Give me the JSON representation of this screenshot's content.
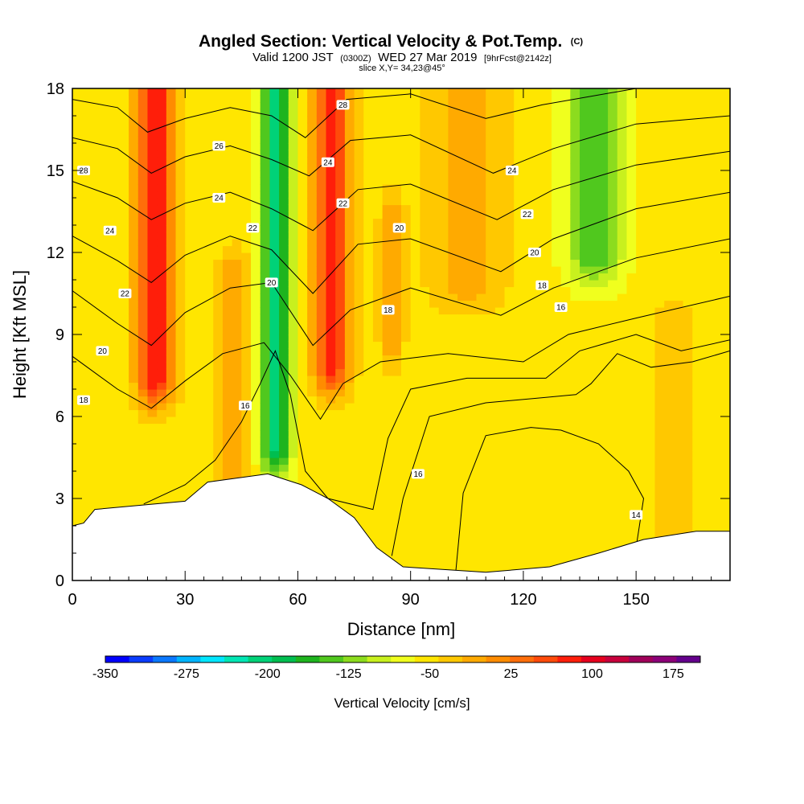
{
  "header": {
    "title_main": "Angled Section: Vertical Velocity & Pot.Temp.",
    "title_suffix": "(C)",
    "valid_prefix": "Valid 1200 JST",
    "valid_utc": "(0300Z)",
    "valid_date": "WED 27 Mar 2019",
    "forecast": "[9hrFcst@2142z]",
    "slice": "slice X,Y= 34,23@45°"
  },
  "chart_data": {
    "type": "heatmap",
    "xlabel": "Distance [nm]",
    "ylabel": "Height [Kft MSL]",
    "xlim": [
      0,
      175
    ],
    "ylim": [
      0,
      18
    ],
    "x_ticks": [
      0,
      30,
      60,
      90,
      120,
      150
    ],
    "y_ticks": [
      0,
      3,
      6,
      9,
      12,
      15,
      18
    ],
    "x_tick_labels": [
      "0",
      "30",
      "60",
      "90",
      "120",
      "150"
    ],
    "y_tick_labels": [
      "0",
      "3",
      "6",
      "9",
      "12",
      "15",
      "18"
    ],
    "colorbar": {
      "title": "Vertical Velocity [cm/s]",
      "min": -350,
      "max": 200,
      "step": 25,
      "tick_values": [
        -350,
        -275,
        -200,
        -125,
        -50,
        25,
        100,
        175
      ],
      "tick_labels": [
        "-350",
        "-275",
        "-200",
        "-125",
        "-50",
        "25",
        "100",
        "175"
      ],
      "colors": [
        "#0000ff",
        "#0a3cff",
        "#0a78ff",
        "#00b4ff",
        "#00e6ff",
        "#00e6b4",
        "#00d278",
        "#00be50",
        "#1eb41e",
        "#50c81e",
        "#8cdc1e",
        "#c8f01e",
        "#f0ff1e",
        "#ffe600",
        "#ffc800",
        "#ffaa00",
        "#ff8c00",
        "#ff6e0a",
        "#ff4b0a",
        "#ff1e0a",
        "#e6001e",
        "#c8003c",
        "#a0005a",
        "#8c0078",
        "#64008c"
      ]
    },
    "velocity_field": {
      "background": -15,
      "features": [
        {
          "x": 22,
          "y_range": [
            7.5,
            18
          ],
          "width": 5,
          "peak": 150
        },
        {
          "x": 43,
          "y_range": [
            3.5,
            11
          ],
          "width": 4,
          "peak": 50
        },
        {
          "x": 54,
          "y_range": [
            5,
            18
          ],
          "width": 4,
          "peak": -185
        },
        {
          "x": 69,
          "y_range": [
            8,
            18
          ],
          "width": 5,
          "peak": 140
        },
        {
          "x": 85,
          "y_range": [
            9,
            13
          ],
          "width": 3,
          "peak": 60
        },
        {
          "x": 105,
          "y_range": [
            11,
            18
          ],
          "width": 10,
          "peak": 40
        },
        {
          "x": 139,
          "y_range": [
            12,
            18
          ],
          "width": 7,
          "peak": -125
        },
        {
          "x": 160,
          "y_range": [
            2,
            9
          ],
          "width": 6,
          "peak": 25
        }
      ]
    },
    "terrain": [
      {
        "x": 0,
        "height": 2.0
      },
      {
        "x": 3,
        "height": 2.1
      },
      {
        "x": 6,
        "height": 2.6
      },
      {
        "x": 30,
        "height": 2.9
      },
      {
        "x": 36,
        "height": 3.6
      },
      {
        "x": 52,
        "height": 3.9
      },
      {
        "x": 61,
        "height": 3.5
      },
      {
        "x": 68,
        "height": 3.0
      },
      {
        "x": 75,
        "height": 2.3
      },
      {
        "x": 81,
        "height": 1.2
      },
      {
        "x": 88,
        "height": 0.5
      },
      {
        "x": 110,
        "height": 0.3
      },
      {
        "x": 127,
        "height": 0.5
      },
      {
        "x": 140,
        "height": 1.0
      },
      {
        "x": 152,
        "height": 1.5
      },
      {
        "x": 166,
        "height": 1.8
      },
      {
        "x": 175,
        "height": 1.8
      }
    ],
    "isentropes": [
      {
        "label": "28",
        "points": [
          [
            0,
            17.6
          ],
          [
            12,
            17.3
          ],
          [
            20,
            16.4
          ],
          [
            30,
            16.9
          ],
          [
            42,
            17.3
          ],
          [
            53,
            17.0
          ],
          [
            62,
            16.2
          ],
          [
            73,
            17.6
          ],
          [
            90,
            17.8
          ],
          [
            110,
            16.9
          ],
          [
            125,
            17.4
          ],
          [
            150,
            18.0
          ],
          [
            175,
            18.0
          ]
        ],
        "labels": [
          [
            3,
            15.0
          ],
          [
            72,
            17.4
          ]
        ]
      },
      {
        "label": "26",
        "points": [
          [
            0,
            16.2
          ],
          [
            12,
            15.8
          ],
          [
            21,
            14.9
          ],
          [
            30,
            15.5
          ],
          [
            42,
            15.9
          ],
          [
            53,
            15.4
          ],
          [
            63,
            14.8
          ],
          [
            74,
            16.1
          ],
          [
            90,
            16.3
          ],
          [
            112,
            14.9
          ],
          [
            128,
            15.8
          ],
          [
            150,
            16.7
          ],
          [
            175,
            17.0
          ]
        ],
        "labels": [
          [
            39,
            15.9
          ]
        ]
      },
      {
        "label": "24",
        "points": [
          [
            0,
            14.6
          ],
          [
            12,
            14.0
          ],
          [
            21,
            13.2
          ],
          [
            30,
            13.8
          ],
          [
            42,
            14.2
          ],
          [
            53,
            13.6
          ],
          [
            64,
            12.8
          ],
          [
            76,
            14.3
          ],
          [
            90,
            14.5
          ],
          [
            113,
            13.2
          ],
          [
            128,
            14.3
          ],
          [
            150,
            15.2
          ],
          [
            175,
            15.7
          ]
        ],
        "labels": [
          [
            10,
            12.8
          ],
          [
            39,
            14.0
          ],
          [
            68,
            15.3
          ],
          [
            117,
            15.0
          ]
        ]
      },
      {
        "label": "22",
        "points": [
          [
            0,
            12.6
          ],
          [
            12,
            11.7
          ],
          [
            21,
            10.9
          ],
          [
            30,
            11.9
          ],
          [
            42,
            12.6
          ],
          [
            53,
            12.1
          ],
          [
            64,
            10.5
          ],
          [
            76,
            12.3
          ],
          [
            90,
            12.5
          ],
          [
            114,
            11.3
          ],
          [
            128,
            12.5
          ],
          [
            150,
            13.6
          ],
          [
            175,
            14.2
          ]
        ],
        "labels": [
          [
            14,
            10.5
          ],
          [
            48,
            12.9
          ],
          [
            72,
            13.8
          ],
          [
            121,
            13.4
          ]
        ]
      },
      {
        "label": "20",
        "points": [
          [
            0,
            10.6
          ],
          [
            12,
            9.4
          ],
          [
            21,
            8.6
          ],
          [
            30,
            9.8
          ],
          [
            42,
            10.7
          ],
          [
            53,
            10.9
          ],
          [
            64,
            8.6
          ],
          [
            74,
            9.9
          ],
          [
            90,
            10.7
          ],
          [
            114,
            9.7
          ],
          [
            128,
            10.7
          ],
          [
            150,
            11.8
          ],
          [
            175,
            12.5
          ]
        ],
        "labels": [
          [
            8,
            8.4
          ],
          [
            53,
            10.9
          ],
          [
            87,
            12.9
          ],
          [
            123,
            12.0
          ]
        ]
      },
      {
        "label": "18",
        "points": [
          [
            0,
            8.2
          ],
          [
            12,
            7.0
          ],
          [
            21,
            6.3
          ],
          [
            30,
            7.3
          ],
          [
            40,
            8.3
          ],
          [
            51,
            8.7
          ],
          [
            58,
            7.5
          ],
          [
            66,
            5.9
          ],
          [
            72,
            7.2
          ],
          [
            82,
            8.0
          ],
          [
            100,
            8.3
          ],
          [
            120,
            8.0
          ],
          [
            132,
            9.0
          ],
          [
            150,
            9.6
          ],
          [
            175,
            10.4
          ]
        ],
        "labels": [
          [
            3,
            6.6
          ],
          [
            84,
            9.9
          ],
          [
            125,
            10.8
          ]
        ]
      },
      {
        "label": "16",
        "points": [
          [
            19,
            2.8
          ],
          [
            30,
            3.5
          ],
          [
            38,
            4.4
          ],
          [
            45,
            5.8
          ],
          [
            50,
            7.2
          ],
          [
            54,
            8.4
          ],
          [
            58,
            6.8
          ],
          [
            62,
            4.0
          ],
          [
            68,
            3.0
          ],
          [
            80,
            2.6
          ],
          [
            84,
            5.2
          ],
          [
            90,
            7.0
          ],
          [
            105,
            7.4
          ],
          [
            126,
            7.4
          ],
          [
            135,
            8.4
          ],
          [
            150,
            9.0
          ],
          [
            162,
            8.4
          ],
          [
            175,
            8.8
          ]
        ],
        "labels": [
          [
            46,
            6.4
          ],
          [
            130,
            10.0
          ]
        ]
      },
      {
        "label": "16",
        "points": [
          [
            85,
            0.9
          ],
          [
            88,
            3.0
          ],
          [
            95,
            6.0
          ],
          [
            110,
            6.5
          ],
          [
            126,
            6.7
          ],
          [
            134,
            6.8
          ],
          [
            138,
            7.2
          ],
          [
            145,
            8.3
          ],
          [
            154,
            7.8
          ],
          [
            165,
            8.0
          ],
          [
            175,
            8.4
          ]
        ],
        "labels": [
          [
            92,
            3.9
          ]
        ]
      },
      {
        "label": "14",
        "points": [
          [
            102,
            0.3
          ],
          [
            104,
            3.2
          ],
          [
            110,
            5.3
          ],
          [
            122,
            5.6
          ],
          [
            130,
            5.5
          ],
          [
            140,
            5.0
          ],
          [
            148,
            4.0
          ],
          [
            152,
            3.0
          ],
          [
            150,
            1.2
          ]
        ],
        "labels": [
          [
            150,
            2.4
          ]
        ]
      }
    ]
  }
}
